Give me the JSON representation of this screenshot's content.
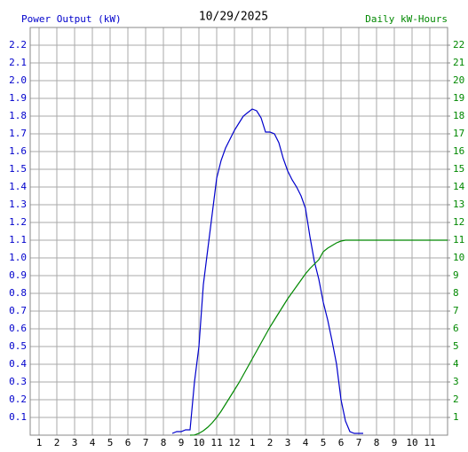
{
  "chart_data": {
    "type": "line",
    "title": "10/29/2025",
    "y_label": "Power Output (kW)",
    "y2_label": "Daily kW-Hours",
    "xlim": [
      0.5,
      24
    ],
    "ylim": [
      0,
      2.3
    ],
    "y2lim": [
      0,
      23
    ],
    "grid": true,
    "xticks": [
      1,
      2,
      3,
      4,
      5,
      6,
      7,
      8,
      9,
      10,
      11,
      12,
      {
        "value": 13,
        "label": "1"
      },
      {
        "value": 14,
        "label": "2"
      },
      {
        "value": 15,
        "label": "3"
      },
      {
        "value": 16,
        "label": "4"
      },
      {
        "value": 17,
        "label": "5"
      },
      {
        "value": 18,
        "label": "6"
      },
      {
        "value": 19,
        "label": "7"
      },
      {
        "value": 20,
        "label": "8"
      },
      {
        "value": 21,
        "label": "9"
      },
      {
        "value": 22,
        "label": "10"
      },
      {
        "value": 23,
        "label": "11"
      }
    ],
    "yticks": [
      0.1,
      0.2,
      0.3,
      0.4,
      0.5,
      0.6,
      0.7,
      0.8,
      0.9,
      {
        "value": 1.0,
        "label": "1.0"
      },
      1.1,
      1.2,
      1.3,
      1.4,
      1.5,
      1.6,
      1.7,
      1.8,
      1.9,
      {
        "value": 2.0,
        "label": "2.0"
      },
      2.1,
      2.2
    ],
    "y2ticks": [
      1,
      2,
      3,
      4,
      5,
      6,
      7,
      8,
      9,
      10,
      11,
      12,
      13,
      14,
      15,
      16,
      17,
      18,
      19,
      20,
      21,
      22
    ],
    "series": [
      {
        "name": "Power Output (kW)",
        "color": "#0000cc",
        "x": [
          8.5,
          8.75,
          9,
          9.25,
          9.5,
          9.75,
          10,
          10.25,
          10.5,
          10.75,
          11,
          11.25,
          11.5,
          11.75,
          12,
          12.25,
          12.5,
          12.75,
          13,
          13.25,
          13.5,
          13.75,
          14,
          14.25,
          14.5,
          14.75,
          15,
          15.25,
          15.5,
          15.75,
          16,
          16.25,
          16.5,
          16.75,
          17,
          17.25,
          17.5,
          17.75,
          18,
          18.25,
          18.5,
          18.75,
          19,
          19.25
        ],
        "values": [
          0.01,
          0.02,
          0.02,
          0.03,
          0.03,
          0.3,
          0.5,
          0.85,
          1.05,
          1.25,
          1.45,
          1.55,
          1.62,
          1.67,
          1.72,
          1.76,
          1.8,
          1.82,
          1.84,
          1.83,
          1.79,
          1.71,
          1.71,
          1.7,
          1.65,
          1.56,
          1.49,
          1.44,
          1.4,
          1.35,
          1.28,
          1.12,
          0.98,
          0.88,
          0.75,
          0.65,
          0.53,
          0.4,
          0.2,
          0.08,
          0.02,
          0.01,
          0.01,
          0.01
        ]
      },
      {
        "name": "Daily kW-Hours",
        "color": "#008800",
        "axis": "y2",
        "x": [
          9.5,
          9.75,
          10,
          10.25,
          10.5,
          10.75,
          11,
          11.25,
          11.5,
          11.75,
          12,
          12.25,
          12.5,
          12.75,
          13,
          13.25,
          13.5,
          13.75,
          14,
          14.25,
          14.5,
          14.75,
          15,
          15.25,
          15.5,
          15.75,
          16,
          16.25,
          16.5,
          16.75,
          17,
          17.25,
          17.5,
          17.75,
          18,
          18.25,
          24
        ],
        "values": [
          0,
          0.01,
          0.1,
          0.25,
          0.45,
          0.7,
          1.0,
          1.35,
          1.75,
          2.15,
          2.55,
          2.95,
          3.4,
          3.85,
          4.3,
          4.75,
          5.2,
          5.65,
          6.1,
          6.5,
          6.9,
          7.3,
          7.7,
          8.05,
          8.4,
          8.75,
          9.1,
          9.4,
          9.65,
          9.9,
          10.35,
          10.55,
          10.7,
          10.85,
          10.95,
          11.0,
          11.0
        ]
      }
    ]
  }
}
